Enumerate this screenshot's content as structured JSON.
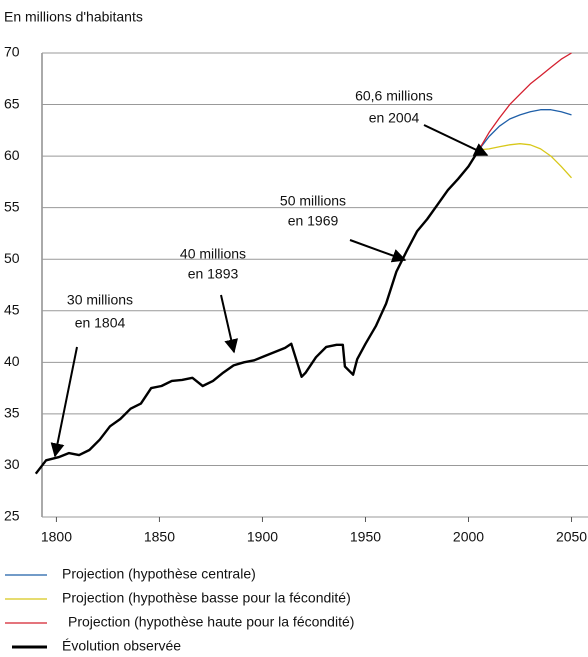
{
  "chart_data": {
    "type": "line",
    "ylabel": "En millions d'habitants",
    "xlim": [
      1793,
      2058
    ],
    "xticks": [
      1800,
      1850,
      1900,
      1950,
      2000,
      2050
    ],
    "ylim": [
      25,
      70
    ],
    "yticks": [
      25,
      30,
      35,
      40,
      45,
      50,
      55,
      60,
      65,
      70
    ],
    "grid": true,
    "annotations": [
      {
        "text": [
          "30 millions",
          "en 1804"
        ]
      },
      {
        "text": [
          "40 millions",
          "en 1893"
        ]
      },
      {
        "text": [
          "50 millions",
          "en 1969"
        ]
      },
      {
        "text": [
          "60,6 millions",
          "en 2004"
        ]
      }
    ],
    "series": [
      {
        "name": "Projection (hypothèse centrale)",
        "color": "#1f5fa8",
        "x": [
          2005,
          2010,
          2015,
          2020,
          2025,
          2030,
          2035,
          2040,
          2045,
          2050
        ],
        "values": [
          60.6,
          61.9,
          62.9,
          63.6,
          64.0,
          64.3,
          64.5,
          64.5,
          64.3,
          64.0
        ]
      },
      {
        "name": "Projection (hypothèse basse pour la fécondité)",
        "color": "#d8c81a",
        "x": [
          2005,
          2010,
          2015,
          2020,
          2025,
          2030,
          2035,
          2040,
          2045,
          2050
        ],
        "values": [
          60.6,
          60.7,
          60.9,
          61.1,
          61.2,
          61.1,
          60.7,
          60.0,
          59.0,
          57.9
        ]
      },
      {
        "name": "Projection (hypothèse haute pour la fécondité)",
        "color": "#d4202f",
        "x": [
          2005,
          2010,
          2015,
          2020,
          2025,
          2030,
          2035,
          2040,
          2045,
          2050
        ],
        "values": [
          60.6,
          62.3,
          63.7,
          65.0,
          66.0,
          67.0,
          67.8,
          68.6,
          69.4,
          70.0
        ]
      },
      {
        "name": "Évolution observée",
        "color": "#000000",
        "x": [
          1790,
          1795,
          1801,
          1806,
          1811,
          1816,
          1821,
          1826,
          1831,
          1836,
          1841,
          1846,
          1851,
          1856,
          1861,
          1866,
          1871,
          1876,
          1881,
          1886,
          1891,
          1896,
          1901,
          1906,
          1911,
          1914,
          1919,
          1921,
          1926,
          1931,
          1936,
          1939,
          1940,
          1944,
          1946,
          1950,
          1955,
          1960,
          1965,
          1970,
          1975,
          1980,
          1985,
          1990,
          1995,
          2000,
          2005
        ],
        "values": [
          29.2,
          30.5,
          30.8,
          31.2,
          31.0,
          31.5,
          32.5,
          33.8,
          34.5,
          35.5,
          36.0,
          37.5,
          37.7,
          38.2,
          38.3,
          38.5,
          37.7,
          38.2,
          39.0,
          39.7,
          40.0,
          40.2,
          40.6,
          41.0,
          41.4,
          41.8,
          38.6,
          39.0,
          40.5,
          41.5,
          41.7,
          41.7,
          39.6,
          38.8,
          40.3,
          41.8,
          43.5,
          45.7,
          48.8,
          50.8,
          52.7,
          53.9,
          55.3,
          56.7,
          57.8,
          59.0,
          60.6
        ]
      }
    ]
  }
}
